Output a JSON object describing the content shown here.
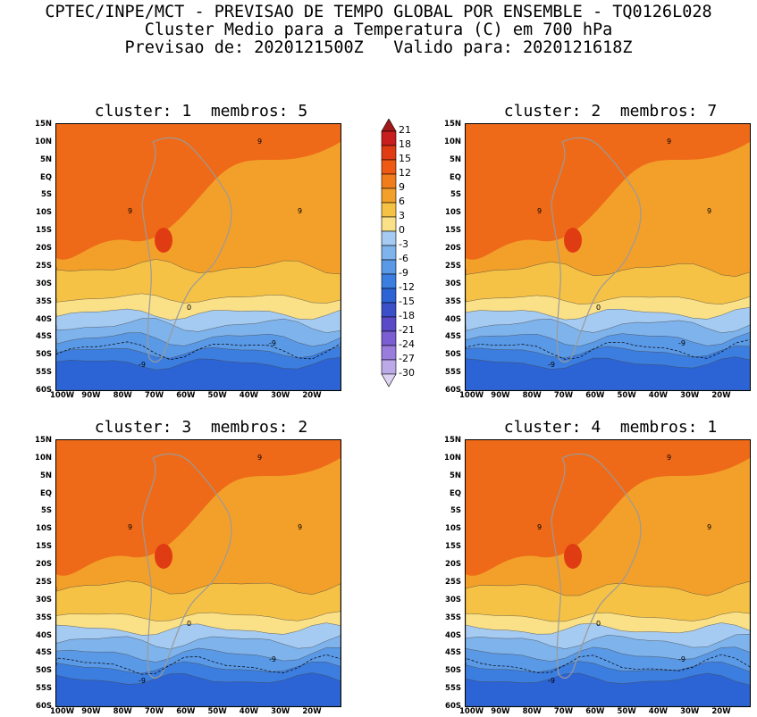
{
  "header": {
    "line1": "CPTEC/INPE/MCT - PREVISAO DE TEMPO GLOBAL POR ENSEMBLE - TQ0126L028",
    "line2": "Cluster Medio para a Temperatura (C) em 700 hPa",
    "line3": "Previsao de: 2020121500Z   Valido para: 2020121618Z"
  },
  "panels": [
    {
      "title": "cluster: 1  membros: 5"
    },
    {
      "title": "cluster: 2  membros: 7"
    },
    {
      "title": "cluster: 3  membros: 2"
    },
    {
      "title": "cluster: 4  membros: 1"
    }
  ],
  "axes": {
    "lat_labels": [
      "15N",
      "10N",
      "5N",
      "EQ",
      "5S",
      "10S",
      "15S",
      "20S",
      "25S",
      "30S",
      "35S",
      "40S",
      "45S",
      "50S",
      "55S",
      "60S"
    ],
    "lon_labels": [
      "100W",
      "90W",
      "80W",
      "70W",
      "60W",
      "50W",
      "40W",
      "30W",
      "20W"
    ]
  },
  "contour_labels": {
    "warm": "9",
    "zero": "0",
    "cold": "-9"
  },
  "colorbar": {
    "labels": [
      "21",
      "18",
      "15",
      "12",
      "9",
      "6",
      "3",
      "0",
      "-3",
      "-6",
      "-9",
      "-12",
      "-15",
      "-18",
      "-21",
      "-24",
      "-27",
      "-30"
    ],
    "colors": [
      "#a01818",
      "#c81e1e",
      "#e03c14",
      "#ee5a14",
      "#f07c1c",
      "#f3a02a",
      "#f6c245",
      "#fae087",
      "#a5cbf2",
      "#7fb3ec",
      "#5a99e6",
      "#3c7ee0",
      "#2c64d6",
      "#3a4fc8",
      "#5a4ac8",
      "#7a5ed2",
      "#9a7cdc",
      "#bcaae8",
      "#ddd2f2"
    ]
  }
}
